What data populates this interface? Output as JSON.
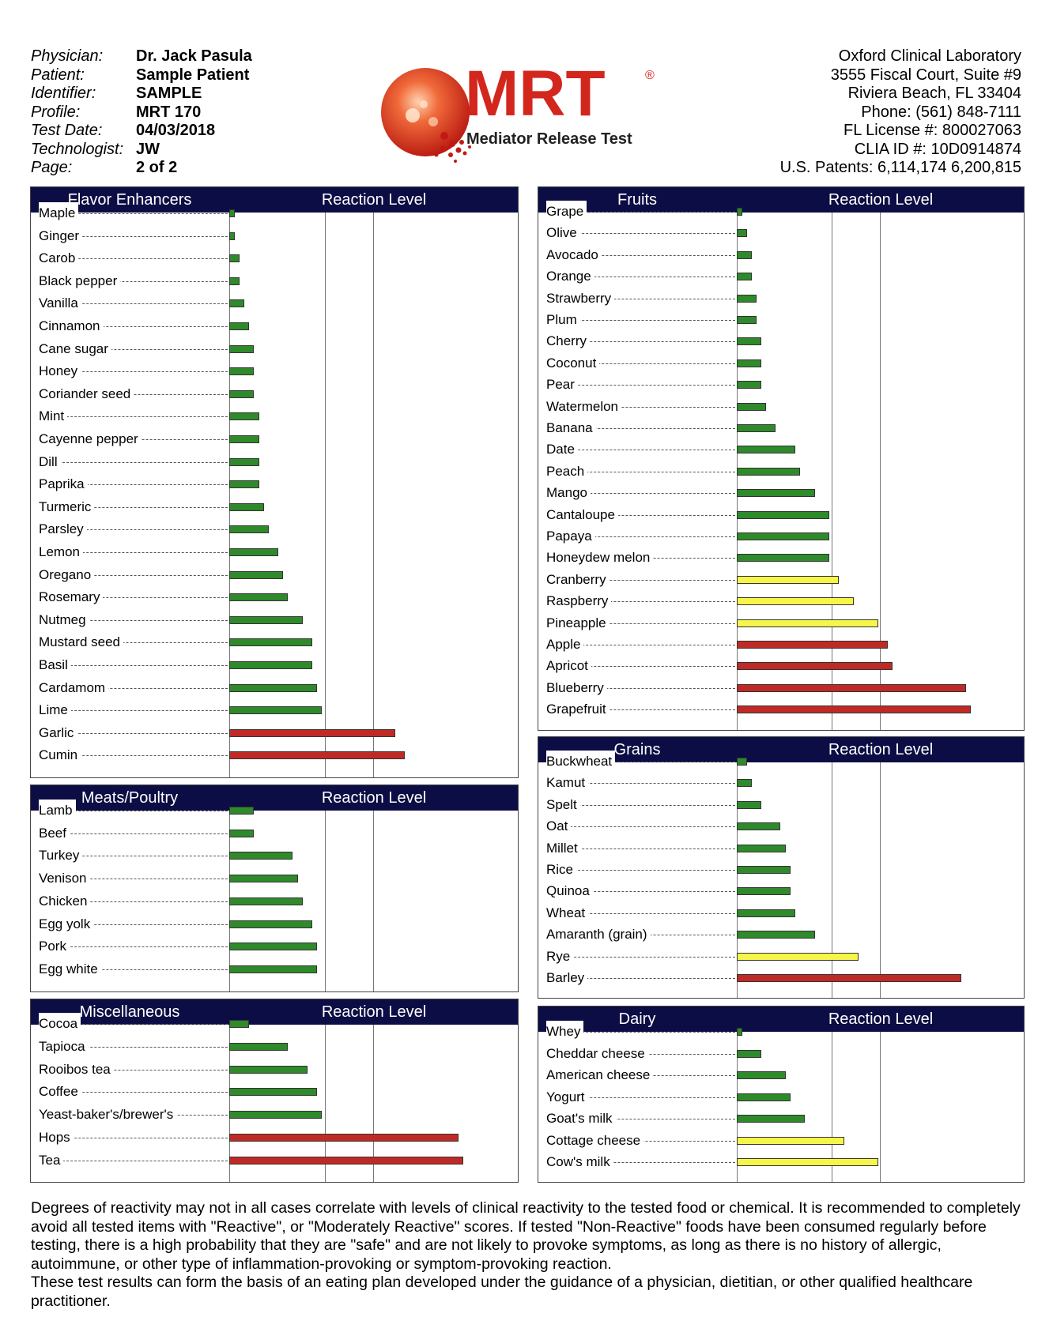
{
  "header": {
    "fields": [
      {
        "label": "Physician:",
        "value": "Dr. Jack Pasula"
      },
      {
        "label": "Patient:",
        "value": "Sample Patient"
      },
      {
        "label": "Identifier:",
        "value": "SAMPLE"
      },
      {
        "label": "Profile:",
        "value": "MRT 170"
      },
      {
        "label": "Test Date:",
        "value": "04/03/2018"
      },
      {
        "label": "Technologist:",
        "value": "JW"
      },
      {
        "label": "Page:",
        "value": "2 of 2"
      }
    ],
    "lab": [
      "Oxford Clinical Laboratory",
      "3555 Fiscal Court, Suite #9",
      "Riviera Beach, FL 33404",
      "Phone: (561) 848-7111",
      "FL License #: 800027063",
      "CLIA ID #: 10D0914874",
      "U.S. Patents: 6,114,174 6,200,815"
    ]
  },
  "logo": {
    "brand": "MRT",
    "registered": "®",
    "subtitle": "Mediator Release Test",
    "colors": {
      "red": "#d3261c",
      "dark": "#222222"
    }
  },
  "colors": {
    "header_bg": "#0d0d45",
    "green": "#2e8a2a",
    "yellow": "#f5f54a",
    "red": "#bf2a26"
  },
  "reaction_label": "Reaction Level",
  "chart_data": [
    {
      "type": "bar",
      "title": "Flavor Enhancers",
      "orientation": "horizontal",
      "xlim": [
        0,
        60
      ],
      "items": [
        {
          "name": "Maple",
          "value": 1.2,
          "level": "green"
        },
        {
          "name": "Ginger",
          "value": 1.2,
          "level": "green"
        },
        {
          "name": "Carob",
          "value": 2.2,
          "level": "green"
        },
        {
          "name": "Black pepper",
          "value": 2.2,
          "level": "green"
        },
        {
          "name": "Vanilla",
          "value": 3.2,
          "level": "green"
        },
        {
          "name": "Cinnamon",
          "value": 4.2,
          "level": "green"
        },
        {
          "name": "Cane sugar",
          "value": 5.2,
          "level": "green"
        },
        {
          "name": "Honey",
          "value": 5.2,
          "level": "green"
        },
        {
          "name": "Coriander seed",
          "value": 5.2,
          "level": "green"
        },
        {
          "name": "Mint",
          "value": 6.2,
          "level": "green"
        },
        {
          "name": "Cayenne pepper",
          "value": 6.2,
          "level": "green"
        },
        {
          "name": "Dill",
          "value": 6.2,
          "level": "green"
        },
        {
          "name": "Paprika",
          "value": 6.2,
          "level": "green"
        },
        {
          "name": "Turmeric",
          "value": 7.3,
          "level": "green"
        },
        {
          "name": "Parsley",
          "value": 8.3,
          "level": "green"
        },
        {
          "name": "Lemon",
          "value": 10.3,
          "level": "green"
        },
        {
          "name": "Oregano",
          "value": 11.3,
          "level": "green"
        },
        {
          "name": "Rosemary",
          "value": 12.3,
          "level": "green"
        },
        {
          "name": "Nutmeg",
          "value": 15.4,
          "level": "green"
        },
        {
          "name": "Mustard seed",
          "value": 17.4,
          "level": "green"
        },
        {
          "name": "Basil",
          "value": 17.4,
          "level": "green"
        },
        {
          "name": "Cardamom",
          "value": 18.4,
          "level": "green"
        },
        {
          "name": "Lime",
          "value": 19.4,
          "level": "green"
        },
        {
          "name": "Garlic",
          "value": 34.7,
          "level": "red"
        },
        {
          "name": "Cumin",
          "value": 36.7,
          "level": "red"
        }
      ]
    },
    {
      "type": "bar",
      "title": "Meats/Poultry",
      "orientation": "horizontal",
      "xlim": [
        0,
        60
      ],
      "items": [
        {
          "name": "Lamb",
          "value": 5.2,
          "level": "green"
        },
        {
          "name": "Beef",
          "value": 5.2,
          "level": "green"
        },
        {
          "name": "Turkey",
          "value": 13.3,
          "level": "green"
        },
        {
          "name": "Venison",
          "value": 14.3,
          "level": "green"
        },
        {
          "name": "Chicken",
          "value": 15.4,
          "level": "green"
        },
        {
          "name": "Egg yolk",
          "value": 17.4,
          "level": "green"
        },
        {
          "name": "Pork",
          "value": 18.4,
          "level": "green"
        },
        {
          "name": "Egg white",
          "value": 18.4,
          "level": "green"
        }
      ]
    },
    {
      "type": "bar",
      "title": "Miscellaneous",
      "orientation": "horizontal",
      "xlim": [
        0,
        60
      ],
      "items": [
        {
          "name": "Cocoa",
          "value": 4.2,
          "level": "green"
        },
        {
          "name": "Tapioca",
          "value": 12.3,
          "level": "green"
        },
        {
          "name": "Rooibos tea",
          "value": 16.4,
          "level": "green"
        },
        {
          "name": "Coffee",
          "value": 18.4,
          "level": "green"
        },
        {
          "name": "Yeast-baker's/brewer's",
          "value": 19.4,
          "level": "green"
        },
        {
          "name": "Hops",
          "value": 47.9,
          "level": "red"
        },
        {
          "name": "Tea",
          "value": 48.9,
          "level": "red"
        }
      ]
    },
    {
      "type": "bar",
      "title": "Fruits",
      "orientation": "horizontal",
      "xlim": [
        0,
        60
      ],
      "items": [
        {
          "name": "Grape",
          "value": 1.1,
          "level": "green"
        },
        {
          "name": "Olive",
          "value": 2.1,
          "level": "green"
        },
        {
          "name": "Avocado",
          "value": 3.1,
          "level": "green"
        },
        {
          "name": "Orange",
          "value": 3.1,
          "level": "green"
        },
        {
          "name": "Strawberry",
          "value": 4.1,
          "level": "green"
        },
        {
          "name": "Plum",
          "value": 4.1,
          "level": "green"
        },
        {
          "name": "Cherry",
          "value": 5.1,
          "level": "green"
        },
        {
          "name": "Coconut",
          "value": 5.1,
          "level": "green"
        },
        {
          "name": "Pear",
          "value": 5.1,
          "level": "green"
        },
        {
          "name": "Watermelon",
          "value": 6.2,
          "level": "green"
        },
        {
          "name": "Banana",
          "value": 8.2,
          "level": "green"
        },
        {
          "name": "Date",
          "value": 12.3,
          "level": "green"
        },
        {
          "name": "Peach",
          "value": 13.3,
          "level": "green"
        },
        {
          "name": "Mango",
          "value": 16.4,
          "level": "green"
        },
        {
          "name": "Cantaloupe",
          "value": 19.5,
          "level": "green"
        },
        {
          "name": "Papaya",
          "value": 19.5,
          "level": "green"
        },
        {
          "name": "Honeydew melon",
          "value": 19.5,
          "level": "green"
        },
        {
          "name": "Cranberry",
          "value": 21.5,
          "level": "yellow"
        },
        {
          "name": "Raspberry",
          "value": 24.6,
          "level": "yellow"
        },
        {
          "name": "Pineapple",
          "value": 29.7,
          "level": "yellow"
        },
        {
          "name": "Apple",
          "value": 31.8,
          "level": "red"
        },
        {
          "name": "Apricot",
          "value": 32.8,
          "level": "red"
        },
        {
          "name": "Blueberry",
          "value": 48.2,
          "level": "red"
        },
        {
          "name": "Grapefruit",
          "value": 49.2,
          "level": "red"
        }
      ]
    },
    {
      "type": "bar",
      "title": "Grains",
      "orientation": "horizontal",
      "xlim": [
        0,
        60
      ],
      "items": [
        {
          "name": "Buckwheat",
          "value": 2.1,
          "level": "green"
        },
        {
          "name": "Kamut",
          "value": 3.1,
          "level": "green"
        },
        {
          "name": "Spelt",
          "value": 5.1,
          "level": "green"
        },
        {
          "name": "Oat",
          "value": 9.2,
          "level": "green"
        },
        {
          "name": "Millet",
          "value": 10.3,
          "level": "green"
        },
        {
          "name": "Rice",
          "value": 11.3,
          "level": "green"
        },
        {
          "name": "Quinoa",
          "value": 11.3,
          "level": "green"
        },
        {
          "name": "Wheat",
          "value": 12.3,
          "level": "green"
        },
        {
          "name": "Amaranth (grain)",
          "value": 16.4,
          "level": "green"
        },
        {
          "name": "Rye",
          "value": 25.6,
          "level": "yellow"
        },
        {
          "name": "Barley",
          "value": 47.2,
          "level": "red"
        }
      ]
    },
    {
      "type": "bar",
      "title": "Dairy",
      "orientation": "horizontal",
      "xlim": [
        0,
        60
      ],
      "items": [
        {
          "name": "Whey",
          "value": 1.1,
          "level": "green"
        },
        {
          "name": "Cheddar cheese",
          "value": 5.1,
          "level": "green"
        },
        {
          "name": "American cheese",
          "value": 10.3,
          "level": "green"
        },
        {
          "name": "Yogurt",
          "value": 11.3,
          "level": "green"
        },
        {
          "name": "Goat's milk",
          "value": 14.3,
          "level": "green"
        },
        {
          "name": "Cottage cheese",
          "value": 22.6,
          "level": "yellow"
        },
        {
          "name": "Cow's milk",
          "value": 29.7,
          "level": "yellow"
        }
      ]
    }
  ],
  "footer": {
    "paragraph1": "Degrees of reactivity may not in all cases correlate with levels of clinical reactivity to the tested food or chemical. It is recommended to completely avoid all tested items with \"Reactive\", or \"Moderately Reactive\" scores. If tested \"Non-Reactive\" foods have been consumed regularly before testing, there is a high probability that they are \"safe\" and are not likely to provoke symptoms, as long as there is no history of allergic, autoimmune, or other type of inflammation-provoking or symptom-provoking reaction.",
    "paragraph2": "These test results can form the basis of an eating plan developed under the guidance of a physician, dietitian, or other qualified healthcare practitioner."
  }
}
